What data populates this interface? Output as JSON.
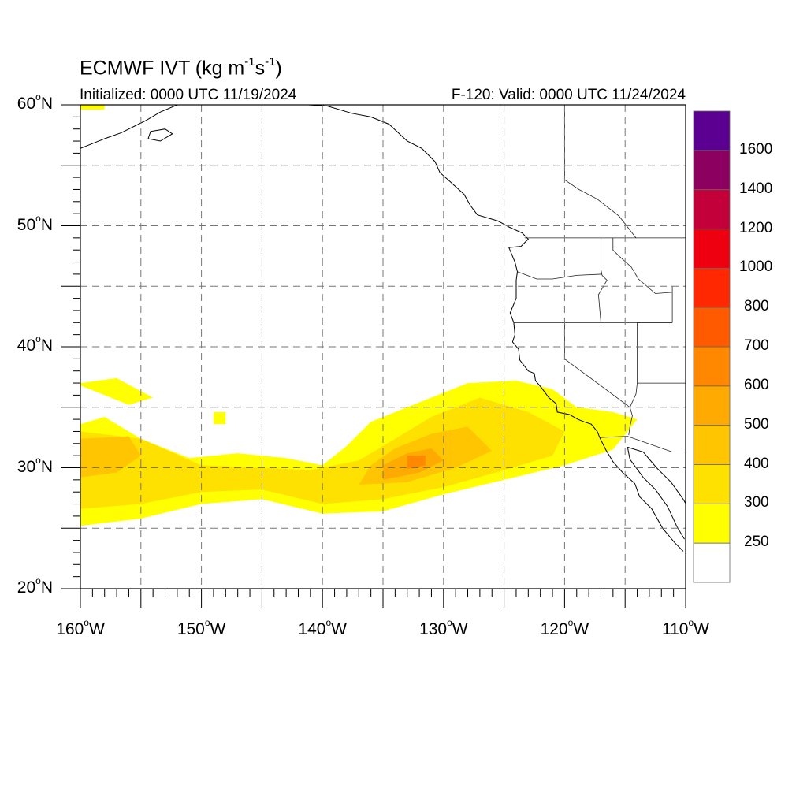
{
  "header": {
    "title_prefix": "ECMWF IVT (kg m",
    "title_exp1": "-1",
    "title_mid": "s",
    "title_exp2": "-1",
    "title_suffix": ")",
    "init_text": "Initialized: 0000 UTC 11/19/2024",
    "valid_text": "F-120: Valid: 0000 UTC 11/24/2024"
  },
  "map": {
    "extent": {
      "lon_min": -160,
      "lon_max": -110,
      "lat_min": 20,
      "lat_max": 60
    },
    "lat_labels": [
      {
        "lat": 60,
        "value": "60",
        "suffix": "N"
      },
      {
        "lat": 50,
        "value": "50",
        "suffix": "N"
      },
      {
        "lat": 40,
        "value": "40",
        "suffix": "N"
      },
      {
        "lat": 30,
        "value": "30",
        "suffix": "N"
      },
      {
        "lat": 20,
        "value": "20",
        "suffix": "N"
      }
    ],
    "lon_labels": [
      {
        "lon": -160,
        "value": "160",
        "suffix": "W"
      },
      {
        "lon": -150,
        "value": "150",
        "suffix": "W"
      },
      {
        "lon": -140,
        "value": "140",
        "suffix": "W"
      },
      {
        "lon": -130,
        "value": "130",
        "suffix": "W"
      },
      {
        "lon": -120,
        "value": "120",
        "suffix": "W"
      },
      {
        "lon": -110,
        "value": "110",
        "suffix": "W"
      }
    ],
    "gridline_lons": [
      -155,
      -150,
      -145,
      -140,
      -135,
      -130,
      -125,
      -120,
      -115
    ],
    "gridline_lats": [
      25,
      30,
      35,
      40,
      45,
      50,
      55
    ],
    "gridline_style": "dashed gray"
  },
  "colorbar": {
    "levels": [
      {
        "lower": 0,
        "color": "#ffffff"
      },
      {
        "lower": 250,
        "color": "#ffff00"
      },
      {
        "lower": 300,
        "color": "#ffe100"
      },
      {
        "lower": 400,
        "color": "#ffc500"
      },
      {
        "lower": 500,
        "color": "#ffaa00"
      },
      {
        "lower": 600,
        "color": "#ff8800"
      },
      {
        "lower": 700,
        "color": "#ff5a00"
      },
      {
        "lower": 800,
        "color": "#ff2800"
      },
      {
        "lower": 1000,
        "color": "#ee0010"
      },
      {
        "lower": 1200,
        "color": "#c4003a"
      },
      {
        "lower": 1400,
        "color": "#8c0060"
      },
      {
        "lower": 1600,
        "color": "#5b0090"
      }
    ],
    "labels": [
      "250",
      "300",
      "400",
      "500",
      "600",
      "700",
      "800",
      "1000",
      "1200",
      "1400",
      "1600"
    ]
  },
  "ivt_field": {
    "description": "atmospheric river plume extending from central Pacific toward southern California",
    "band_250": [
      [
        -160,
        25.2
      ],
      [
        -155,
        25.8
      ],
      [
        -150,
        27.0
      ],
      [
        -145,
        27.4
      ],
      [
        -140,
        26.2
      ],
      [
        -135,
        26.4
      ],
      [
        -130,
        27.8
      ],
      [
        -125,
        29.0
      ],
      [
        -120,
        30.2
      ],
      [
        -116,
        31.5
      ],
      [
        -114,
        34.0
      ],
      [
        -116,
        34.6
      ],
      [
        -119,
        35.0
      ],
      [
        -121,
        36.5
      ],
      [
        -124,
        37.2
      ],
      [
        -128,
        37.0
      ],
      [
        -132,
        35.4
      ],
      [
        -136,
        33.8
      ],
      [
        -138,
        31.8
      ],
      [
        -140,
        30.2
      ],
      [
        -143,
        30.8
      ],
      [
        -147,
        31.2
      ],
      [
        -151,
        30.8
      ],
      [
        -155,
        32.4
      ],
      [
        -158,
        34.2
      ],
      [
        -160,
        33.6
      ]
    ],
    "band_300": [
      [
        -160,
        26.6
      ],
      [
        -155,
        27.0
      ],
      [
        -150,
        28.0
      ],
      [
        -145,
        28.2
      ],
      [
        -140,
        27.0
      ],
      [
        -135,
        27.4
      ],
      [
        -130,
        28.4
      ],
      [
        -125,
        29.8
      ],
      [
        -121,
        31.0
      ],
      [
        -120,
        33.0
      ],
      [
        -123,
        34.6
      ],
      [
        -127,
        35.8
      ],
      [
        -131,
        34.2
      ],
      [
        -134,
        32.4
      ],
      [
        -137,
        30.6
      ],
      [
        -141,
        29.8
      ],
      [
        -145,
        30.0
      ],
      [
        -150,
        30.2
      ],
      [
        -155,
        32.4
      ],
      [
        -160,
        33.0
      ]
    ],
    "band_400": [
      [
        -137,
        28.6
      ],
      [
        -133,
        28.8
      ],
      [
        -129,
        30.0
      ],
      [
        -126,
        31.4
      ],
      [
        -128,
        33.4
      ],
      [
        -131,
        32.8
      ],
      [
        -134,
        31.6
      ],
      [
        -136,
        30.2
      ]
    ],
    "band_500": [
      [
        -135,
        29.0
      ],
      [
        -132,
        29.6
      ],
      [
        -130,
        30.6
      ],
      [
        -131,
        31.6
      ],
      [
        -133,
        31.2
      ],
      [
        -135,
        30.2
      ]
    ],
    "band_600": [
      [
        -133,
        29.9
      ],
      [
        -131.5,
        30.2
      ],
      [
        -131.5,
        31.0
      ],
      [
        -133,
        31.0
      ]
    ],
    "west_patch_400": [
      [
        -160,
        29.2
      ],
      [
        -157,
        29.6
      ],
      [
        -155,
        31.0
      ],
      [
        -156,
        32.6
      ],
      [
        -160,
        32.4
      ]
    ],
    "nw_tail_250": [
      [
        -160,
        37.0
      ],
      [
        -157,
        37.4
      ],
      [
        -154,
        35.8
      ],
      [
        -156,
        35.2
      ],
      [
        -160,
        36.8
      ]
    ],
    "small_patch_250": [
      [
        -149,
        33.6
      ],
      [
        -148,
        33.6
      ],
      [
        -148,
        34.6
      ],
      [
        -149,
        34.6
      ]
    ],
    "alaska_patch_250": [
      [
        -160,
        59.6
      ],
      [
        -158,
        59.6
      ],
      [
        -158,
        60.0
      ],
      [
        -160,
        60.0
      ]
    ]
  },
  "coastlines": {
    "west_coast": [
      [
        -117.1,
        32.5
      ],
      [
        -117.3,
        33.0
      ],
      [
        -117.8,
        33.6
      ],
      [
        -118.4,
        33.8
      ],
      [
        -118.9,
        34.0
      ],
      [
        -119.6,
        34.4
      ],
      [
        -120.6,
        34.6
      ],
      [
        -120.7,
        35.3
      ],
      [
        -121.3,
        35.8
      ],
      [
        -121.9,
        36.6
      ],
      [
        -122.4,
        37.2
      ],
      [
        -122.5,
        37.8
      ],
      [
        -123.0,
        38.0
      ],
      [
        -123.7,
        38.9
      ],
      [
        -123.8,
        39.8
      ],
      [
        -124.3,
        40.4
      ],
      [
        -124.1,
        41.0
      ],
      [
        -124.2,
        42.0
      ],
      [
        -124.5,
        42.8
      ],
      [
        -124.0,
        44.0
      ],
      [
        -124.0,
        45.5
      ],
      [
        -123.9,
        46.2
      ],
      [
        -124.1,
        47.0
      ],
      [
        -124.6,
        48.2
      ],
      [
        -123.6,
        48.3
      ],
      [
        -123.0,
        48.9
      ],
      [
        -123.5,
        49.4
      ],
      [
        -124.6,
        49.9
      ],
      [
        -125.5,
        50.4
      ],
      [
        -127.2,
        50.9
      ],
      [
        -127.8,
        51.7
      ],
      [
        -128.3,
        52.6
      ],
      [
        -129.4,
        53.6
      ],
      [
        -130.3,
        54.4
      ],
      [
        -130.7,
        55.3
      ],
      [
        -131.8,
        56.4
      ],
      [
        -133.0,
        57.0
      ],
      [
        -134.5,
        58.4
      ],
      [
        -136.0,
        59.0
      ],
      [
        -137.6,
        59.3
      ],
      [
        -139.6,
        59.9
      ],
      [
        -141.2,
        60.0
      ]
    ],
    "baja_west": [
      [
        -117.1,
        32.5
      ],
      [
        -116.6,
        31.5
      ],
      [
        -116.0,
        30.5
      ],
      [
        -115.2,
        29.6
      ],
      [
        -114.2,
        28.7
      ],
      [
        -113.8,
        27.6
      ],
      [
        -112.8,
        26.6
      ],
      [
        -111.9,
        25.0
      ],
      [
        -110.9,
        23.8
      ],
      [
        -110.2,
        23.1
      ]
    ],
    "baja_gulf": [
      [
        -114.8,
        31.7
      ],
      [
        -114.6,
        30.7
      ],
      [
        -113.5,
        29.2
      ],
      [
        -112.5,
        28.2
      ],
      [
        -111.5,
        26.8
      ],
      [
        -110.7,
        25.1
      ],
      [
        -110.1,
        24.1
      ]
    ],
    "mexico_mainland": [
      [
        -114.8,
        31.7
      ],
      [
        -113.5,
        31.3
      ],
      [
        -112.4,
        30.0
      ],
      [
        -111.2,
        28.8
      ],
      [
        -110.2,
        27.4
      ],
      [
        -109.4,
        26.0
      ],
      [
        -108.4,
        25.3
      ]
    ],
    "alaska_sw": [
      [
        -160,
        56.4
      ],
      [
        -158.0,
        57.2
      ],
      [
        -156.6,
        57.7
      ],
      [
        -154.6,
        58.7
      ],
      [
        -153.4,
        59.4
      ],
      [
        -152.0,
        60.0
      ]
    ],
    "kodiak": [
      [
        -154.4,
        57.2
      ],
      [
        -153.4,
        57.0
      ],
      [
        -152.4,
        57.6
      ],
      [
        -153.0,
        58.0
      ],
      [
        -154.2,
        57.8
      ],
      [
        -154.4,
        57.2
      ]
    ]
  },
  "borders": {
    "us_canada": [
      [
        -123.3,
        49.0
      ],
      [
        -110,
        49.0
      ]
    ],
    "us_mexico": [
      [
        -117.1,
        32.5
      ],
      [
        -114.8,
        32.6
      ],
      [
        -111.1,
        31.3
      ],
      [
        -110,
        31.3
      ]
    ],
    "ca_or": [
      [
        -124.2,
        42.0
      ],
      [
        -120.0,
        42.0
      ],
      [
        -117.0,
        42.0
      ],
      [
        -111.1,
        42.0
      ]
    ],
    "or_wa": [
      [
        -123.9,
        46.2
      ],
      [
        -122.3,
        45.6
      ],
      [
        -121.0,
        45.6
      ],
      [
        -119.0,
        45.9
      ],
      [
        -116.9,
        46.0
      ]
    ],
    "id_wa": [
      [
        -117.0,
        49.0
      ],
      [
        -117.0,
        46.4
      ],
      [
        -116.9,
        45.9
      ],
      [
        -116.5,
        45.5
      ],
      [
        -117.2,
        44.3
      ],
      [
        -117.0,
        42.0
      ]
    ],
    "ca_nv": [
      [
        -120.0,
        42.0
      ],
      [
        -120.0,
        39.0
      ],
      [
        -114.6,
        35.0
      ]
    ],
    "nv_az": [
      [
        -114.6,
        35.0
      ],
      [
        -114.1,
        36.1
      ],
      [
        -114.0,
        37.0
      ],
      [
        -114.0,
        42.0
      ]
    ],
    "az_ca": [
      [
        -114.6,
        35.0
      ],
      [
        -114.4,
        34.3
      ],
      [
        -114.6,
        33.4
      ],
      [
        -114.7,
        32.7
      ]
    ],
    "ut_az": [
      [
        -114.0,
        37.0
      ],
      [
        -110,
        37.0
      ]
    ],
    "ut_id": [
      [
        -114.0,
        42.0
      ],
      [
        -111.1,
        42.0
      ]
    ],
    "wy_id": [
      [
        -111.1,
        45.0
      ],
      [
        -111.1,
        42.0
      ]
    ],
    "mt_id": [
      [
        -116.0,
        49.0
      ],
      [
        -116.0,
        48.0
      ],
      [
        -115.5,
        47.5
      ],
      [
        -114.5,
        46.6
      ],
      [
        -113.9,
        45.6
      ],
      [
        -112.5,
        44.4
      ],
      [
        -111.1,
        44.5
      ]
    ],
    "canada_bc_ab": [
      [
        -120.0,
        60.0
      ],
      [
        -120.0,
        53.8
      ],
      [
        -118.8,
        53.0
      ],
      [
        -117.3,
        52.2
      ],
      [
        -115.5,
        50.8
      ],
      [
        -114.1,
        49.0
      ]
    ]
  }
}
